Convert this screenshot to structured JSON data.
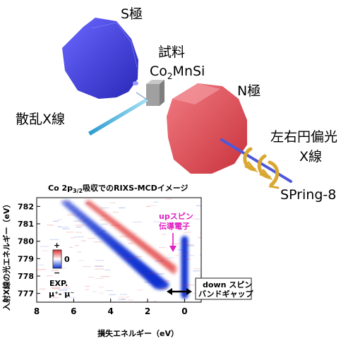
{
  "labels": {
    "s_pole": "S極",
    "sample": "試料",
    "sample_formula": {
      "main": "Co",
      "sub": "2",
      "rest": "MnSi"
    },
    "n_pole": "N極",
    "scattered": "散乱X線",
    "circular_line1": "左右円偏光",
    "circular_line2": "X線",
    "facility": "SPring-8"
  },
  "chart": {
    "title": {
      "prefix": "Co 2p",
      "sub": "3/2",
      "suffix": "吸収でのRIXS-MCDイメージ"
    },
    "ylabel": "入射X線の光エネルギー（eV）",
    "xlabel": "損失エネルギー（eV）",
    "up_spin": [
      "upスピン",
      "伝導電子"
    ],
    "down_spin": [
      "down スピン",
      "バンドギャップ"
    ],
    "exp_line1": "EXP.",
    "exp_line2": "μ⁺- μ⁻",
    "colorbar": {
      "plus": "+",
      "zero": "0",
      "minus": "−"
    }
  },
  "chart_data": {
    "type": "heatmap",
    "x_ticks": [
      "8",
      "6",
      "4",
      "2",
      "0"
    ],
    "x_tick_values": [
      8,
      6,
      4,
      2,
      0
    ],
    "xlim": [
      8,
      -0.9
    ],
    "y_ticks": [
      "782",
      "781",
      "780",
      "779",
      "778",
      "777"
    ],
    "y_tick_values": [
      782,
      781,
      780,
      779,
      778,
      777
    ],
    "ylim": [
      776.5,
      782.5
    ],
    "colormap": {
      "positive": "#e03030",
      "zero": "#ffffff",
      "negative": "#1030d0"
    },
    "features": [
      {
        "name": "diagonal",
        "sign": "negative",
        "from": [
          6.4,
          782.2
        ],
        "to": [
          1.3,
          777.5
        ]
      },
      {
        "name": "diagonal",
        "sign": "positive",
        "from": [
          5.2,
          782.2
        ],
        "to": [
          0.6,
          778.4
        ]
      },
      {
        "name": "elastic",
        "sign": "negative",
        "x": 0,
        "y_range": [
          776.7,
          780.3
        ]
      }
    ]
  },
  "colors": {
    "s_pole": "#4a48d8",
    "n_pole": "#e0525a",
    "beam": "#4f58d8",
    "scatter_beam": "#3ab0d0",
    "arrow_gold": "#d9a832",
    "annotation_magenta": "#e020c0"
  }
}
